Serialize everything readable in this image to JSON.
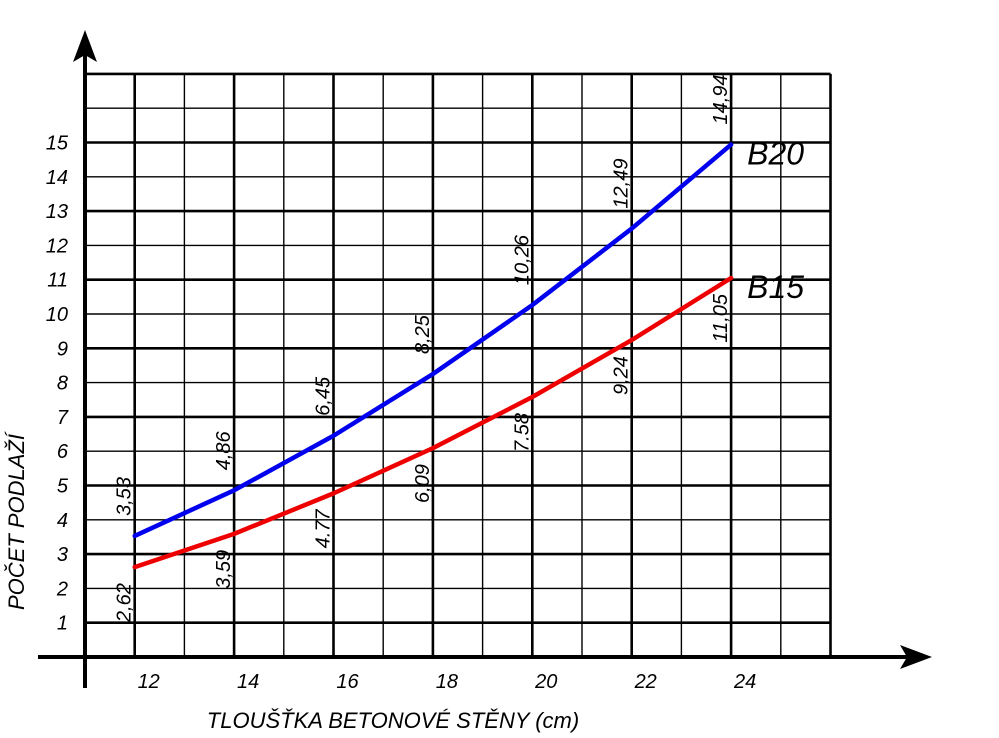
{
  "chart_data": {
    "type": "line",
    "title": "",
    "xlabel": "TLOUŠŤKA BETONOVÉ STĚNY (cm)",
    "ylabel": "POČET PODLAŽÍ",
    "x": [
      12,
      14,
      16,
      18,
      20,
      22,
      24
    ],
    "x_ticks": [
      "12",
      "14",
      "16",
      "18",
      "20",
      "22",
      "24"
    ],
    "y_ticks": [
      "1",
      "2",
      "3",
      "4",
      "5",
      "6",
      "7",
      "8",
      "9",
      "10",
      "11",
      "12",
      "13",
      "14",
      "15"
    ],
    "xlim": [
      11,
      26
    ],
    "ylim": [
      0,
      17
    ],
    "grid": true,
    "series": [
      {
        "name": "B20",
        "color": "#0000ee",
        "values": [
          3.53,
          4.86,
          6.45,
          8.25,
          10.26,
          12.49,
          14.94
        ],
        "value_labels": [
          "3,53",
          "4,86",
          "6,45",
          "8,25",
          "10,26",
          "12,49",
          "14,94"
        ]
      },
      {
        "name": "B15",
        "color": "#ee0000",
        "values": [
          2.62,
          3.59,
          4.77,
          6.09,
          7.58,
          9.24,
          11.05
        ],
        "value_labels": [
          "2,62",
          "3,59",
          "4.77",
          "6,09",
          "7.58",
          "9,24",
          "11,05"
        ]
      }
    ]
  }
}
